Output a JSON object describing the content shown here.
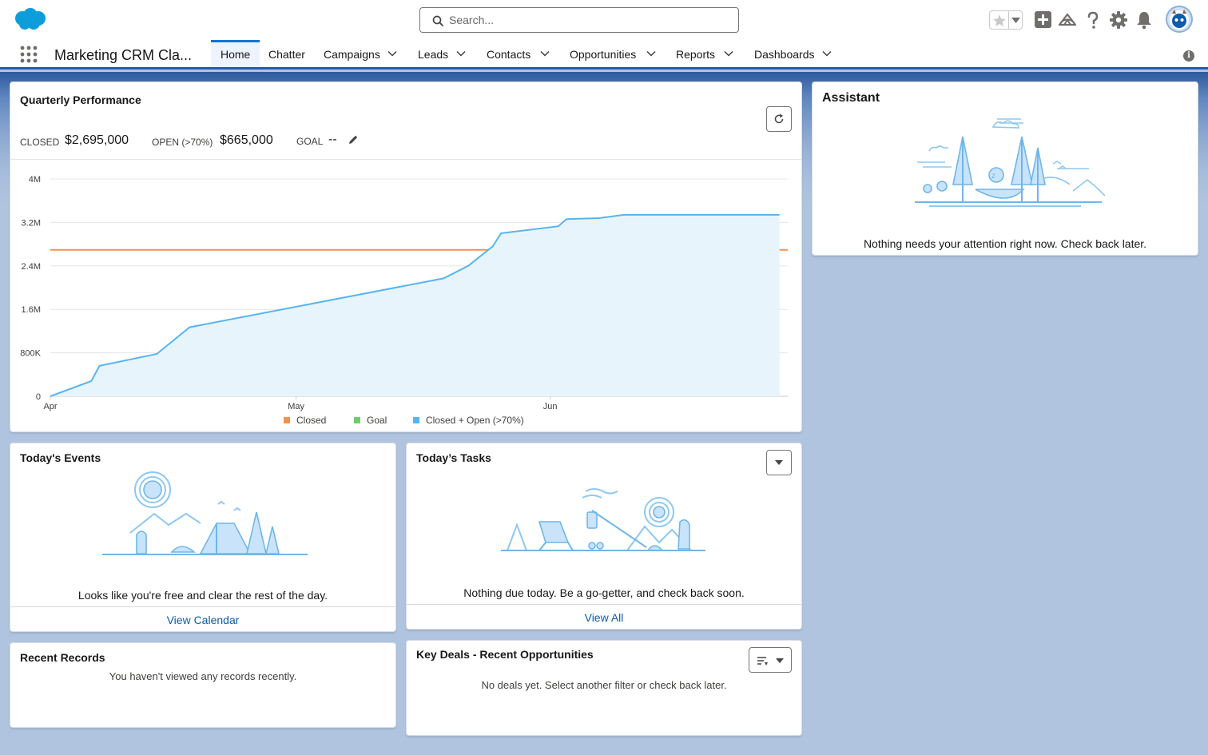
{
  "header": {
    "search_placeholder": "Search...",
    "icons": [
      "favorites-star-icon",
      "global-add-icon",
      "trailhead-icon",
      "help-icon",
      "setup-gear-icon",
      "notifications-bell-icon",
      "user-avatar"
    ]
  },
  "nav": {
    "app_name": "Marketing CRM Cla...",
    "items": [
      {
        "label": "Home",
        "active": true
      },
      {
        "label": "Chatter"
      },
      {
        "label": "Campaigns"
      },
      {
        "label": "Leads"
      },
      {
        "label": "Contacts"
      },
      {
        "label": "Opportunities"
      },
      {
        "label": "Reports"
      },
      {
        "label": "Dashboards"
      }
    ]
  },
  "quarterly": {
    "title": "Quarterly Performance",
    "closed_label": "CLOSED",
    "closed_value": "$2,695,000",
    "open_label": "OPEN (>70%)",
    "open_value": "$665,000",
    "goal_label": "GOAL",
    "goal_value": "--"
  },
  "chart_data": {
    "type": "line",
    "y_ticks": [
      "0",
      "800K",
      "1.6M",
      "2.4M",
      "3.2M",
      "4M"
    ],
    "ylim": [
      0,
      4000000
    ],
    "x_ticks": [
      "Apr",
      "May",
      "Jun"
    ],
    "x_tick_days": [
      0,
      30,
      61
    ],
    "x_range_days": [
      0,
      90
    ],
    "series": [
      {
        "name": "Closed",
        "color": "#f4924f",
        "points": [
          [
            0,
            2695000
          ],
          [
            90,
            2695000
          ]
        ]
      },
      {
        "name": "Goal",
        "color": "#6dcd6d",
        "points": []
      },
      {
        "name": "Closed + Open (>70%)",
        "color": "#56b5f0",
        "area": true,
        "points": [
          [
            0,
            0
          ],
          [
            5,
            280000
          ],
          [
            6,
            560000
          ],
          [
            13,
            780000
          ],
          [
            17,
            1270000
          ],
          [
            48,
            2170000
          ],
          [
            51,
            2400000
          ],
          [
            54,
            2760000
          ],
          [
            55,
            3000000
          ],
          [
            62,
            3130000
          ],
          [
            63,
            3260000
          ],
          [
            67,
            3280000
          ],
          [
            70,
            3340000
          ],
          [
            89,
            3340000
          ]
        ]
      }
    ],
    "legend": [
      "Closed",
      "Goal",
      "Closed + Open (>70%)"
    ],
    "legend_position": "bottom"
  },
  "assistant": {
    "title": "Assistant",
    "message": "Nothing needs your attention right now. Check back later."
  },
  "events": {
    "title": "Today's Events",
    "message": "Looks like you're free and clear the rest of the day.",
    "link": "View Calendar"
  },
  "tasks": {
    "title": "Today’s Tasks",
    "message": "Nothing due today. Be a go-getter, and check back soon.",
    "link": "View All"
  },
  "recent": {
    "title": "Recent Records",
    "message": "You haven't viewed any records recently."
  },
  "deals": {
    "title": "Key Deals - Recent Opportunities",
    "message": "No deals yet. Select another filter or check back later."
  }
}
